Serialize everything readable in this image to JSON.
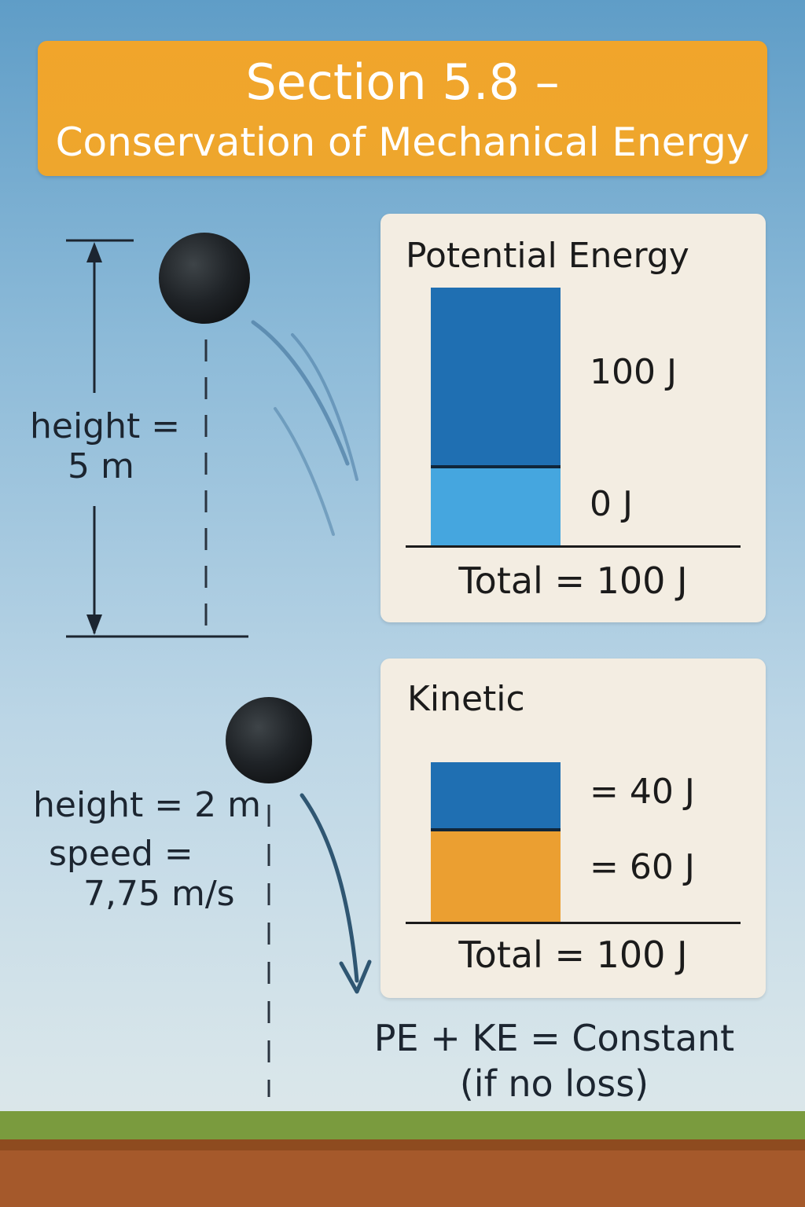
{
  "title": {
    "line1": "Section 5.8 –",
    "line2": "Conservation of Mechanical Energy"
  },
  "top_position": {
    "height_label_line1": "height =",
    "height_label_line2": "5 m"
  },
  "bottom_position": {
    "height_label": "height = 2 m",
    "speed_label_line1": "speed =",
    "speed_label_line2": "7,75 m/s"
  },
  "potential_panel": {
    "title": "Potential Energy",
    "upper_value": "100 J",
    "lower_value": "0 J",
    "total": "Total = 100 J"
  },
  "kinetic_panel": {
    "title": "Kinetic",
    "upper_value": "= 40 J",
    "lower_value": "= 60 J",
    "total": "Total = 100 J"
  },
  "equation": {
    "line1": "PE + KE = Constant",
    "line2": "(if no loss)"
  },
  "bar_fill": {
    "potential_upper_fraction": 0.69,
    "kinetic_upper_fraction": 0.43
  },
  "colors": {
    "banner": "#f1a52b",
    "potential_dark_blue": "#1f6fb2",
    "potential_light_blue": "#45a6df",
    "kinetic_blue": "#1f6fb2",
    "kinetic_orange": "#eb9f31",
    "panel_background": "#f3ede2",
    "ball": "#1f2327"
  },
  "icons": [
    "ball-icon",
    "height-arrow-icon",
    "fall-arrow-icon",
    "motion-lines-icon"
  ]
}
